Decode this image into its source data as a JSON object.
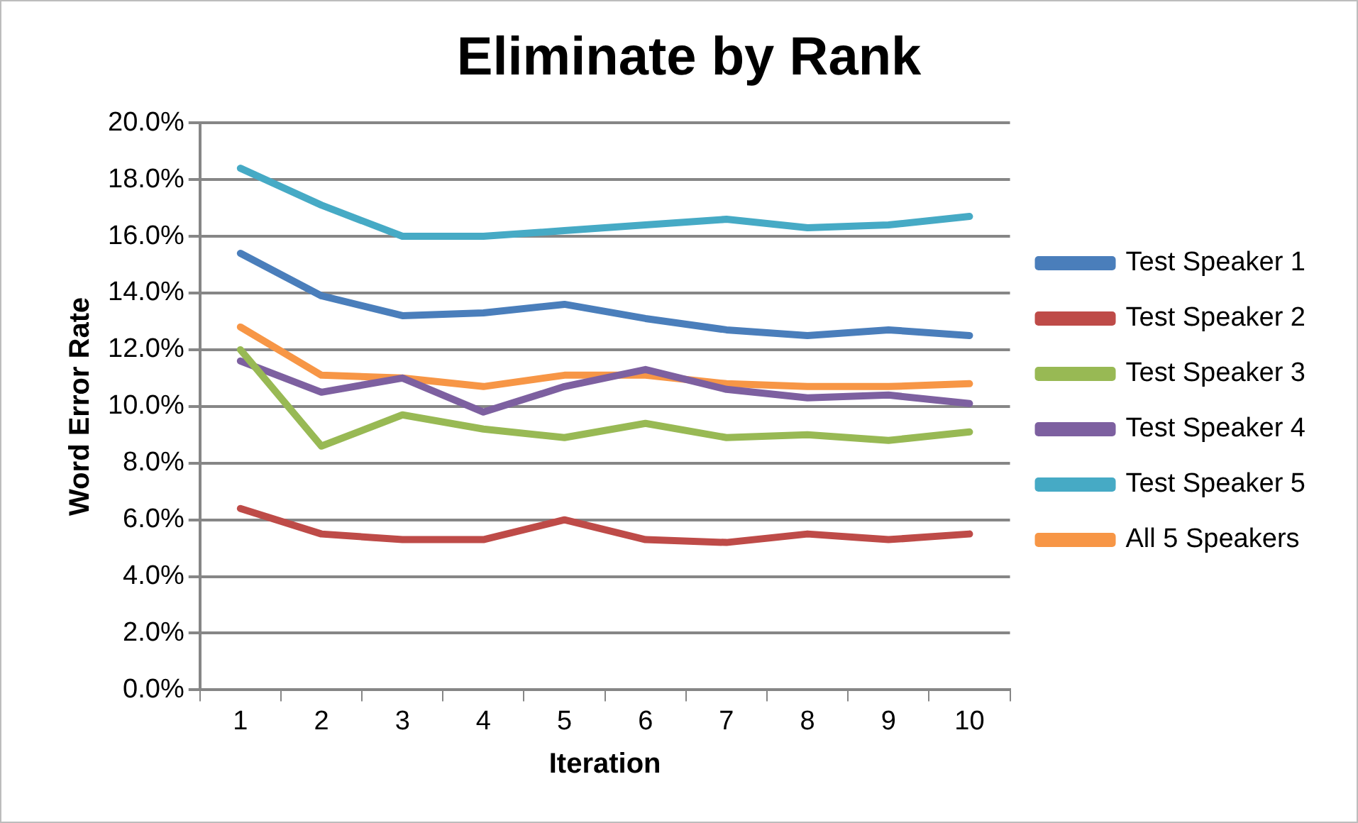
{
  "chart_data": {
    "type": "line",
    "title": "Eliminate by Rank",
    "xlabel": "Iteration",
    "ylabel": "Word Error Rate",
    "categories": [
      "1",
      "2",
      "3",
      "4",
      "5",
      "6",
      "7",
      "8",
      "9",
      "10"
    ],
    "series": [
      {
        "name": "Test Speaker 1",
        "color": "#4a7ebb",
        "values": [
          15.4,
          13.9,
          13.2,
          13.3,
          13.6,
          13.1,
          12.7,
          12.5,
          12.7,
          12.5
        ]
      },
      {
        "name": "Test Speaker 2",
        "color": "#be4b48",
        "values": [
          6.4,
          5.5,
          5.3,
          5.3,
          6.0,
          5.3,
          5.2,
          5.5,
          5.3,
          5.5
        ]
      },
      {
        "name": "Test Speaker 3",
        "color": "#98b954",
        "values": [
          12.0,
          8.6,
          9.7,
          9.2,
          8.9,
          9.4,
          8.9,
          9.0,
          8.8,
          9.1
        ]
      },
      {
        "name": "Test Speaker 4",
        "color": "#7d60a0",
        "values": [
          11.6,
          10.5,
          11.0,
          9.8,
          10.7,
          11.3,
          10.6,
          10.3,
          10.4,
          10.1
        ]
      },
      {
        "name": "Test Speaker 5",
        "color": "#46aac5",
        "values": [
          18.4,
          17.1,
          16.0,
          16.0,
          16.2,
          16.4,
          16.6,
          16.3,
          16.4,
          16.7
        ]
      },
      {
        "name": "All 5 Speakers",
        "color": "#f79646",
        "values": [
          12.8,
          11.1,
          11.0,
          10.7,
          11.1,
          11.1,
          10.8,
          10.7,
          10.7,
          10.8
        ]
      }
    ],
    "ylim": [
      0,
      20
    ],
    "yticks": [
      {
        "value": 0,
        "label": "0.0%"
      },
      {
        "value": 2,
        "label": "2.0%"
      },
      {
        "value": 4,
        "label": "4.0%"
      },
      {
        "value": 6,
        "label": "6.0%"
      },
      {
        "value": 8,
        "label": "8.0%"
      },
      {
        "value": 10,
        "label": "10.0%"
      },
      {
        "value": 12,
        "label": "12.0%"
      },
      {
        "value": 14,
        "label": "14.0%"
      },
      {
        "value": 16,
        "label": "16.0%"
      },
      {
        "value": 18,
        "label": "18.0%"
      },
      {
        "value": 20,
        "label": "20.0%"
      }
    ],
    "grid": "y",
    "legend": "right",
    "marker": "none",
    "line_style": "solid"
  }
}
